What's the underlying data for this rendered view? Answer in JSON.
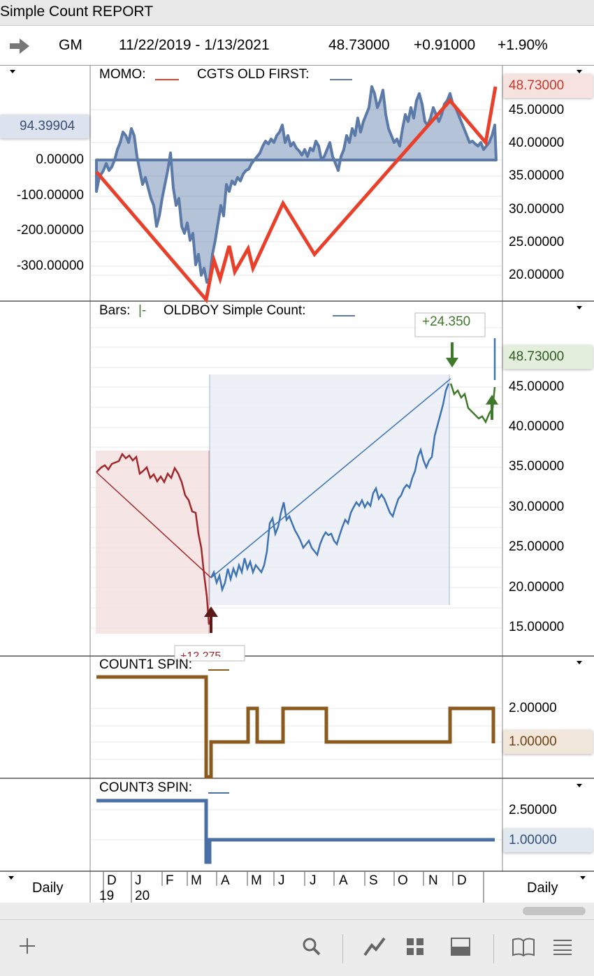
{
  "window": {
    "title": "Simple Count REPORT"
  },
  "quote": {
    "symbol": "GM",
    "date_range": "11/22/2019 - 1/13/2021",
    "last": "48.73000",
    "change": "+0.91000",
    "change_pct": "+1.90%"
  },
  "panel1": {
    "legend_a": "MOMO:",
    "legend_b": "CGTS OLD FIRST:",
    "left_ticks": [
      "0.00000",
      "-100.00000",
      "-200.00000",
      "-300.00000"
    ],
    "left_tag": "94.39904",
    "right_ticks": [
      "45.00000",
      "40.00000",
      "35.00000",
      "30.00000",
      "25.00000",
      "20.00000"
    ],
    "right_tag": "48.73000"
  },
  "panel2": {
    "legend_bars": "Bars:",
    "legend_bars_mark": "|-",
    "legend_ind": "OLDBOY Simple Count:",
    "top_box": "+24.350",
    "bottom_box": "+12.275",
    "right_ticks": [
      "45.00000",
      "40.00000",
      "35.00000",
      "30.00000",
      "25.00000",
      "20.00000",
      "15.00000"
    ],
    "right_tag": "48.73000"
  },
  "panel3": {
    "legend": "COUNT1 SPIN:",
    "right_ticks": [
      "2.00000"
    ],
    "right_tag": "1.00000"
  },
  "panel4": {
    "legend": "COUNT3 SPIN:",
    "right_ticks": [
      "2.50000"
    ],
    "right_tag": "1.00000"
  },
  "axis": {
    "left_label": "Daily",
    "right_label": "Daily",
    "months": [
      "D",
      "J",
      "F",
      "M",
      "A",
      "M",
      "J",
      "J",
      "A",
      "S",
      "O",
      "N",
      "D"
    ],
    "years": [
      "19",
      "20"
    ]
  },
  "colors": {
    "momo": "#e8402a",
    "cgts": "#5b7aa8",
    "count1": "#8b5a1e",
    "count3": "#4a6fa5",
    "down_bars": "#a0282c",
    "up_bars": "#3f74b4",
    "green_bars": "#3f7a2a"
  },
  "toolbar": {
    "icons": [
      "plus-icon",
      "search-icon",
      "chart-line-icon",
      "grid-icon",
      "layout-icon",
      "book-icon",
      "menu-icon"
    ]
  }
}
